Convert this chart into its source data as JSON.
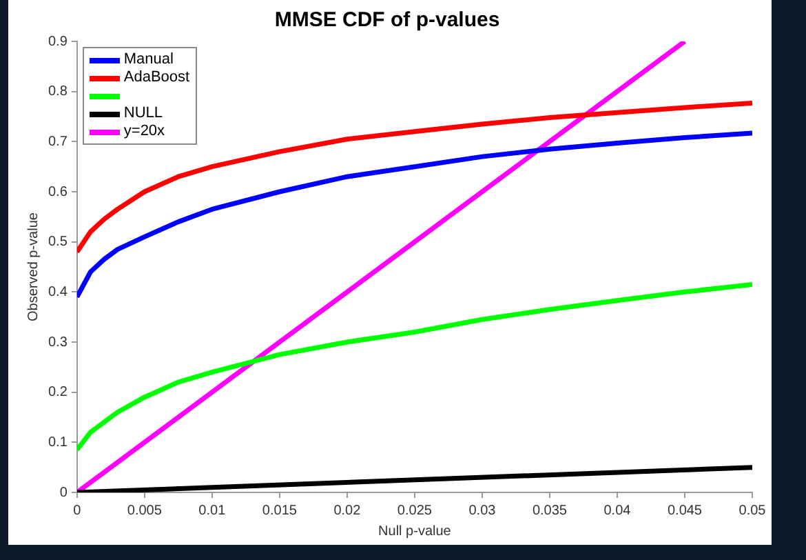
{
  "chart_data": {
    "type": "line",
    "title": "MMSE CDF of p-values",
    "xlabel": "Null p-value",
    "ylabel": "Observed p-value",
    "xlim": [
      0,
      0.05
    ],
    "xticks": [
      0,
      0.005,
      0.01,
      0.015,
      0.02,
      0.025,
      0.03,
      0.035,
      0.04,
      0.045,
      0.05
    ],
    "ylim": [
      0,
      0.9
    ],
    "yticks": [
      0,
      0.1,
      0.2,
      0.3,
      0.4,
      0.5,
      0.6,
      0.7,
      0.8,
      0.9
    ],
    "grid": false,
    "legend": "top left",
    "marker": "none",
    "line_style": "solid",
    "series": [
      {
        "name": "Manual",
        "color": "#0000ff",
        "x": [
          0,
          0.001,
          0.002,
          0.003,
          0.005,
          0.0075,
          0.01,
          0.015,
          0.02,
          0.025,
          0.03,
          0.035,
          0.04,
          0.045,
          0.05
        ],
        "values": [
          0.39,
          0.44,
          0.465,
          0.485,
          0.51,
          0.54,
          0.565,
          0.6,
          0.63,
          0.65,
          0.67,
          0.685,
          0.697,
          0.708,
          0.717
        ]
      },
      {
        "name": "AdaBoost",
        "color": "#ff0000",
        "x": [
          0,
          0.001,
          0.002,
          0.003,
          0.005,
          0.0075,
          0.01,
          0.015,
          0.02,
          0.025,
          0.03,
          0.035,
          0.04,
          0.045,
          0.05
        ],
        "values": [
          0.48,
          0.52,
          0.545,
          0.565,
          0.6,
          0.63,
          0.65,
          0.68,
          0.705,
          0.72,
          0.735,
          0.748,
          0.758,
          0.768,
          0.777
        ]
      },
      {
        "color": "#00ff00",
        "x": [
          0,
          0.001,
          0.002,
          0.003,
          0.005,
          0.0075,
          0.01,
          0.015,
          0.02,
          0.025,
          0.03,
          0.035,
          0.04,
          0.045,
          0.05
        ],
        "values": [
          0.085,
          0.12,
          0.14,
          0.16,
          0.19,
          0.22,
          0.24,
          0.275,
          0.3,
          0.32,
          0.345,
          0.365,
          0.383,
          0.4,
          0.415
        ]
      },
      {
        "name": "NULL",
        "color": "#000000",
        "x": [
          0,
          0.05
        ],
        "values": [
          0,
          0.05
        ]
      },
      {
        "name": "y=20x",
        "color": "#ff00ff",
        "x": [
          0,
          0.045
        ],
        "values": [
          0,
          0.9
        ]
      }
    ]
  }
}
